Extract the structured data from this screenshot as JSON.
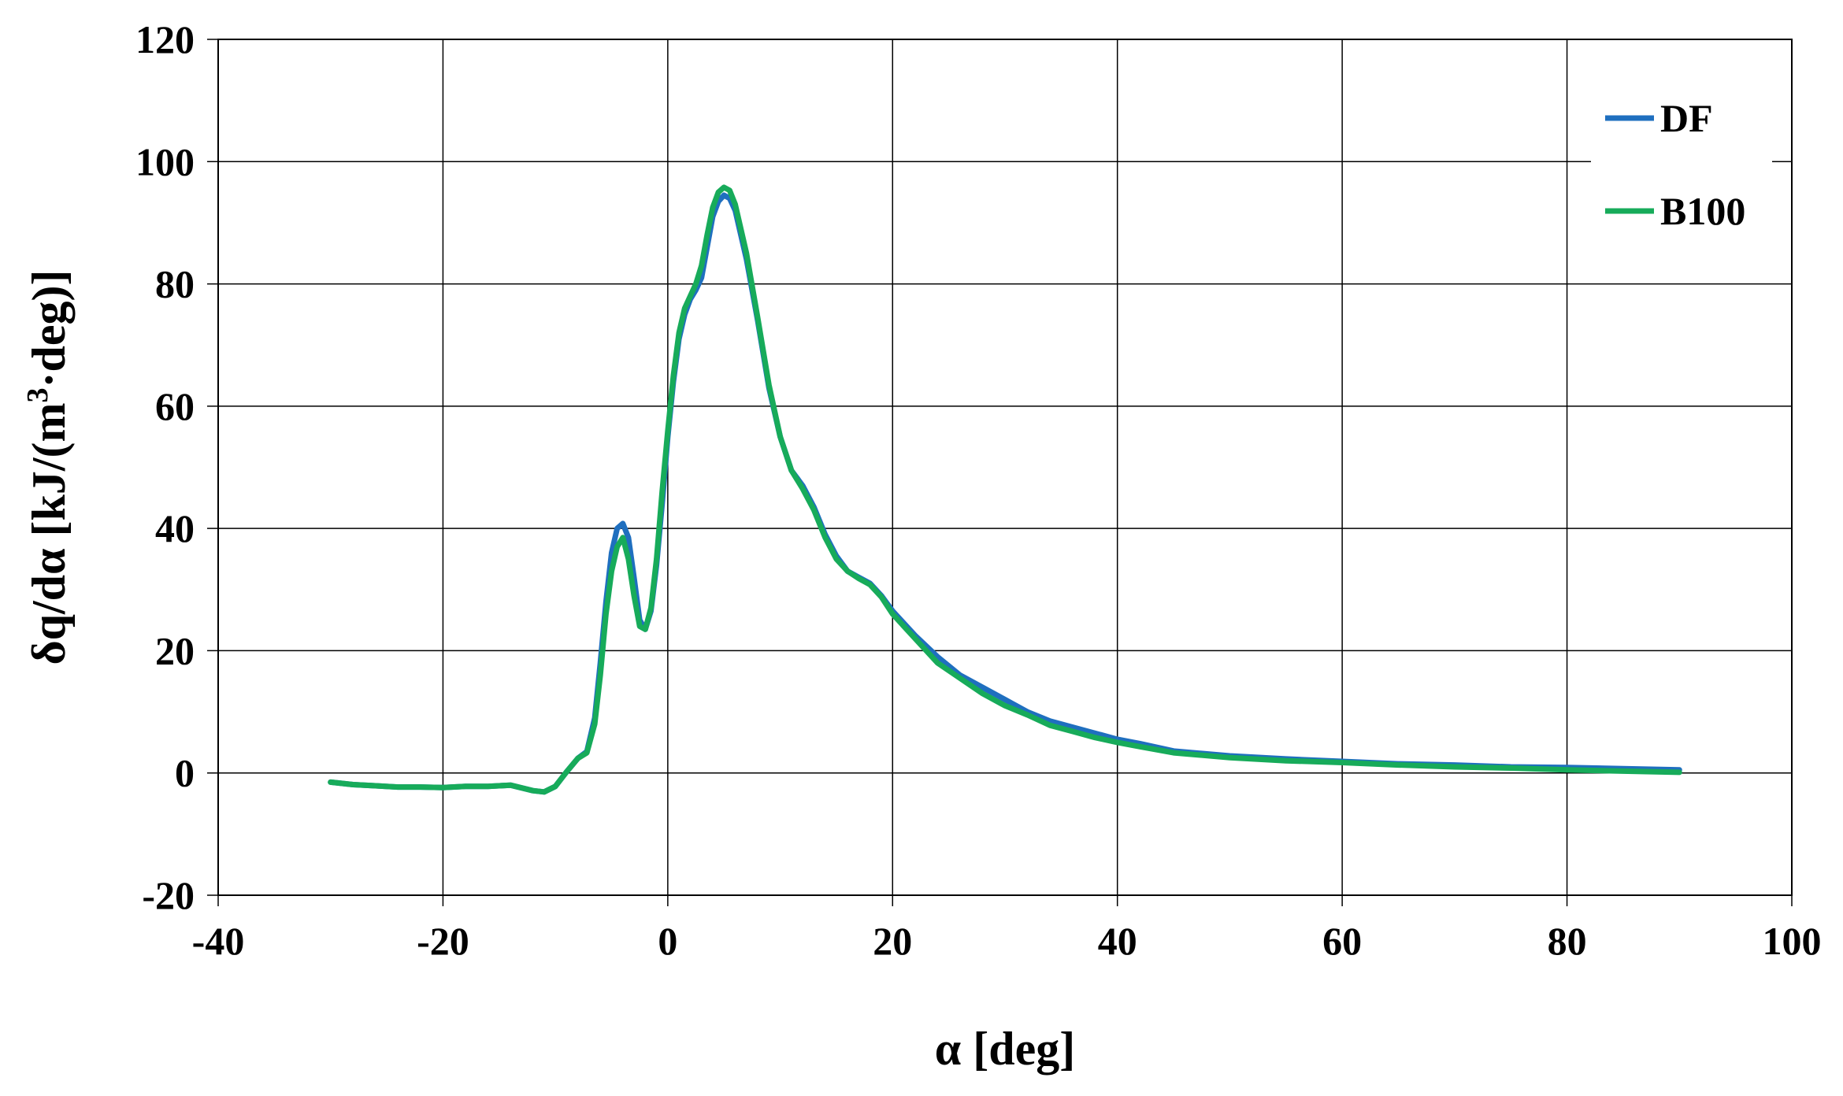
{
  "chart_data": {
    "type": "line",
    "xlabel": "α [deg]",
    "ylabel_parts": {
      "main": "δq/dα [kJ/(m",
      "sup": "3",
      "tail": "·deg)]"
    },
    "xlim": [
      -40,
      100
    ],
    "ylim": [
      -20,
      120
    ],
    "xticks": [
      -40,
      -20,
      0,
      20,
      40,
      60,
      80,
      100
    ],
    "yticks": [
      -20,
      0,
      20,
      40,
      60,
      80,
      100,
      120
    ],
    "grid": true,
    "legend_position": "top-right",
    "series": [
      {
        "name": "DF",
        "color": "#1f6fbf",
        "points": [
          [
            -30,
            -1.5
          ],
          [
            -28,
            -1.9
          ],
          [
            -26,
            -2.1
          ],
          [
            -24,
            -2.3
          ],
          [
            -22,
            -2.3
          ],
          [
            -20,
            -2.4
          ],
          [
            -18,
            -2.2
          ],
          [
            -16,
            -2.2
          ],
          [
            -14,
            -2.0
          ],
          [
            -12,
            -2.9
          ],
          [
            -11,
            -3.1
          ],
          [
            -10,
            -2.2
          ],
          [
            -9,
            0.2
          ],
          [
            -8,
            2.4
          ],
          [
            -7.2,
            3.5
          ],
          [
            -6.5,
            9.0
          ],
          [
            -6,
            18.0
          ],
          [
            -5.5,
            28.0
          ],
          [
            -5,
            36.0
          ],
          [
            -4.5,
            40.0
          ],
          [
            -4,
            40.8
          ],
          [
            -3.5,
            38.5
          ],
          [
            -3,
            32.0
          ],
          [
            -2.5,
            25.0
          ],
          [
            -2,
            23.5
          ],
          [
            -1.5,
            26.5
          ],
          [
            -1,
            34.0
          ],
          [
            -0.5,
            44.0
          ],
          [
            0,
            55.0
          ],
          [
            0.5,
            64.0
          ],
          [
            1,
            71.0
          ],
          [
            1.5,
            75.0
          ],
          [
            2,
            77.5
          ],
          [
            2.5,
            79.0
          ],
          [
            3,
            81.0
          ],
          [
            3.5,
            86.0
          ],
          [
            4,
            91.0
          ],
          [
            4.5,
            93.5
          ],
          [
            5,
            94.5
          ],
          [
            5.5,
            94.0
          ],
          [
            6,
            92.0
          ],
          [
            7,
            84.0
          ],
          [
            8,
            74.0
          ],
          [
            9,
            63.0
          ],
          [
            10,
            55.0
          ],
          [
            11,
            49.5
          ],
          [
            12,
            47.0
          ],
          [
            13,
            43.5
          ],
          [
            14,
            39.0
          ],
          [
            15,
            35.5
          ],
          [
            16,
            33.0
          ],
          [
            17,
            32.0
          ],
          [
            18,
            31.0
          ],
          [
            19,
            29.0
          ],
          [
            20,
            26.5
          ],
          [
            22,
            22.5
          ],
          [
            24,
            19.0
          ],
          [
            26,
            16.0
          ],
          [
            28,
            14.0
          ],
          [
            30,
            12.0
          ],
          [
            32,
            10.0
          ],
          [
            34,
            8.5
          ],
          [
            36,
            7.5
          ],
          [
            38,
            6.5
          ],
          [
            40,
            5.5
          ],
          [
            42,
            4.8
          ],
          [
            45,
            3.6
          ],
          [
            50,
            2.8
          ],
          [
            55,
            2.3
          ],
          [
            60,
            1.9
          ],
          [
            65,
            1.5
          ],
          [
            70,
            1.3
          ],
          [
            75,
            1.0
          ],
          [
            80,
            0.9
          ],
          [
            85,
            0.7
          ],
          [
            90,
            0.5
          ]
        ]
      },
      {
        "name": "B100",
        "color": "#17ab5a",
        "points": [
          [
            -30,
            -1.5
          ],
          [
            -28,
            -1.9
          ],
          [
            -26,
            -2.1
          ],
          [
            -24,
            -2.3
          ],
          [
            -22,
            -2.3
          ],
          [
            -20,
            -2.4
          ],
          [
            -18,
            -2.2
          ],
          [
            -16,
            -2.2
          ],
          [
            -14,
            -2.0
          ],
          [
            -12,
            -2.9
          ],
          [
            -11,
            -3.1
          ],
          [
            -10,
            -2.2
          ],
          [
            -9,
            0.2
          ],
          [
            -8,
            2.4
          ],
          [
            -7.2,
            3.3
          ],
          [
            -6.5,
            8.0
          ],
          [
            -6,
            16.0
          ],
          [
            -5.5,
            26.0
          ],
          [
            -5,
            33.0
          ],
          [
            -4.5,
            37.0
          ],
          [
            -4,
            38.5
          ],
          [
            -3.5,
            35.0
          ],
          [
            -3,
            29.0
          ],
          [
            -2.5,
            24.0
          ],
          [
            -2,
            23.5
          ],
          [
            -1.5,
            27.0
          ],
          [
            -1,
            35.0
          ],
          [
            -0.5,
            46.0
          ],
          [
            0,
            56.0
          ],
          [
            0.5,
            65.0
          ],
          [
            1,
            72.0
          ],
          [
            1.5,
            76.0
          ],
          [
            2,
            78.0
          ],
          [
            2.5,
            80.0
          ],
          [
            3,
            83.0
          ],
          [
            3.5,
            88.0
          ],
          [
            4,
            92.5
          ],
          [
            4.5,
            95.0
          ],
          [
            5,
            95.8
          ],
          [
            5.5,
            95.3
          ],
          [
            6,
            93.0
          ],
          [
            7,
            85.0
          ],
          [
            8,
            74.5
          ],
          [
            9,
            63.5
          ],
          [
            10,
            55.0
          ],
          [
            11,
            49.5
          ],
          [
            12,
            46.5
          ],
          [
            13,
            43.0
          ],
          [
            14,
            38.5
          ],
          [
            15,
            35.0
          ],
          [
            16,
            33.0
          ],
          [
            17,
            31.8
          ],
          [
            18,
            30.8
          ],
          [
            19,
            28.8
          ],
          [
            20,
            26.0
          ],
          [
            22,
            22.0
          ],
          [
            24,
            18.0
          ],
          [
            26,
            15.5
          ],
          [
            28,
            13.0
          ],
          [
            30,
            11.0
          ],
          [
            32,
            9.5
          ],
          [
            34,
            7.8
          ],
          [
            36,
            6.8
          ],
          [
            38,
            5.8
          ],
          [
            40,
            5.0
          ],
          [
            42,
            4.3
          ],
          [
            45,
            3.3
          ],
          [
            50,
            2.5
          ],
          [
            55,
            2.0
          ],
          [
            60,
            1.7
          ],
          [
            65,
            1.3
          ],
          [
            70,
            1.0
          ],
          [
            75,
            0.8
          ],
          [
            80,
            0.5
          ],
          [
            85,
            0.3
          ],
          [
            90,
            0.1
          ]
        ]
      }
    ]
  }
}
